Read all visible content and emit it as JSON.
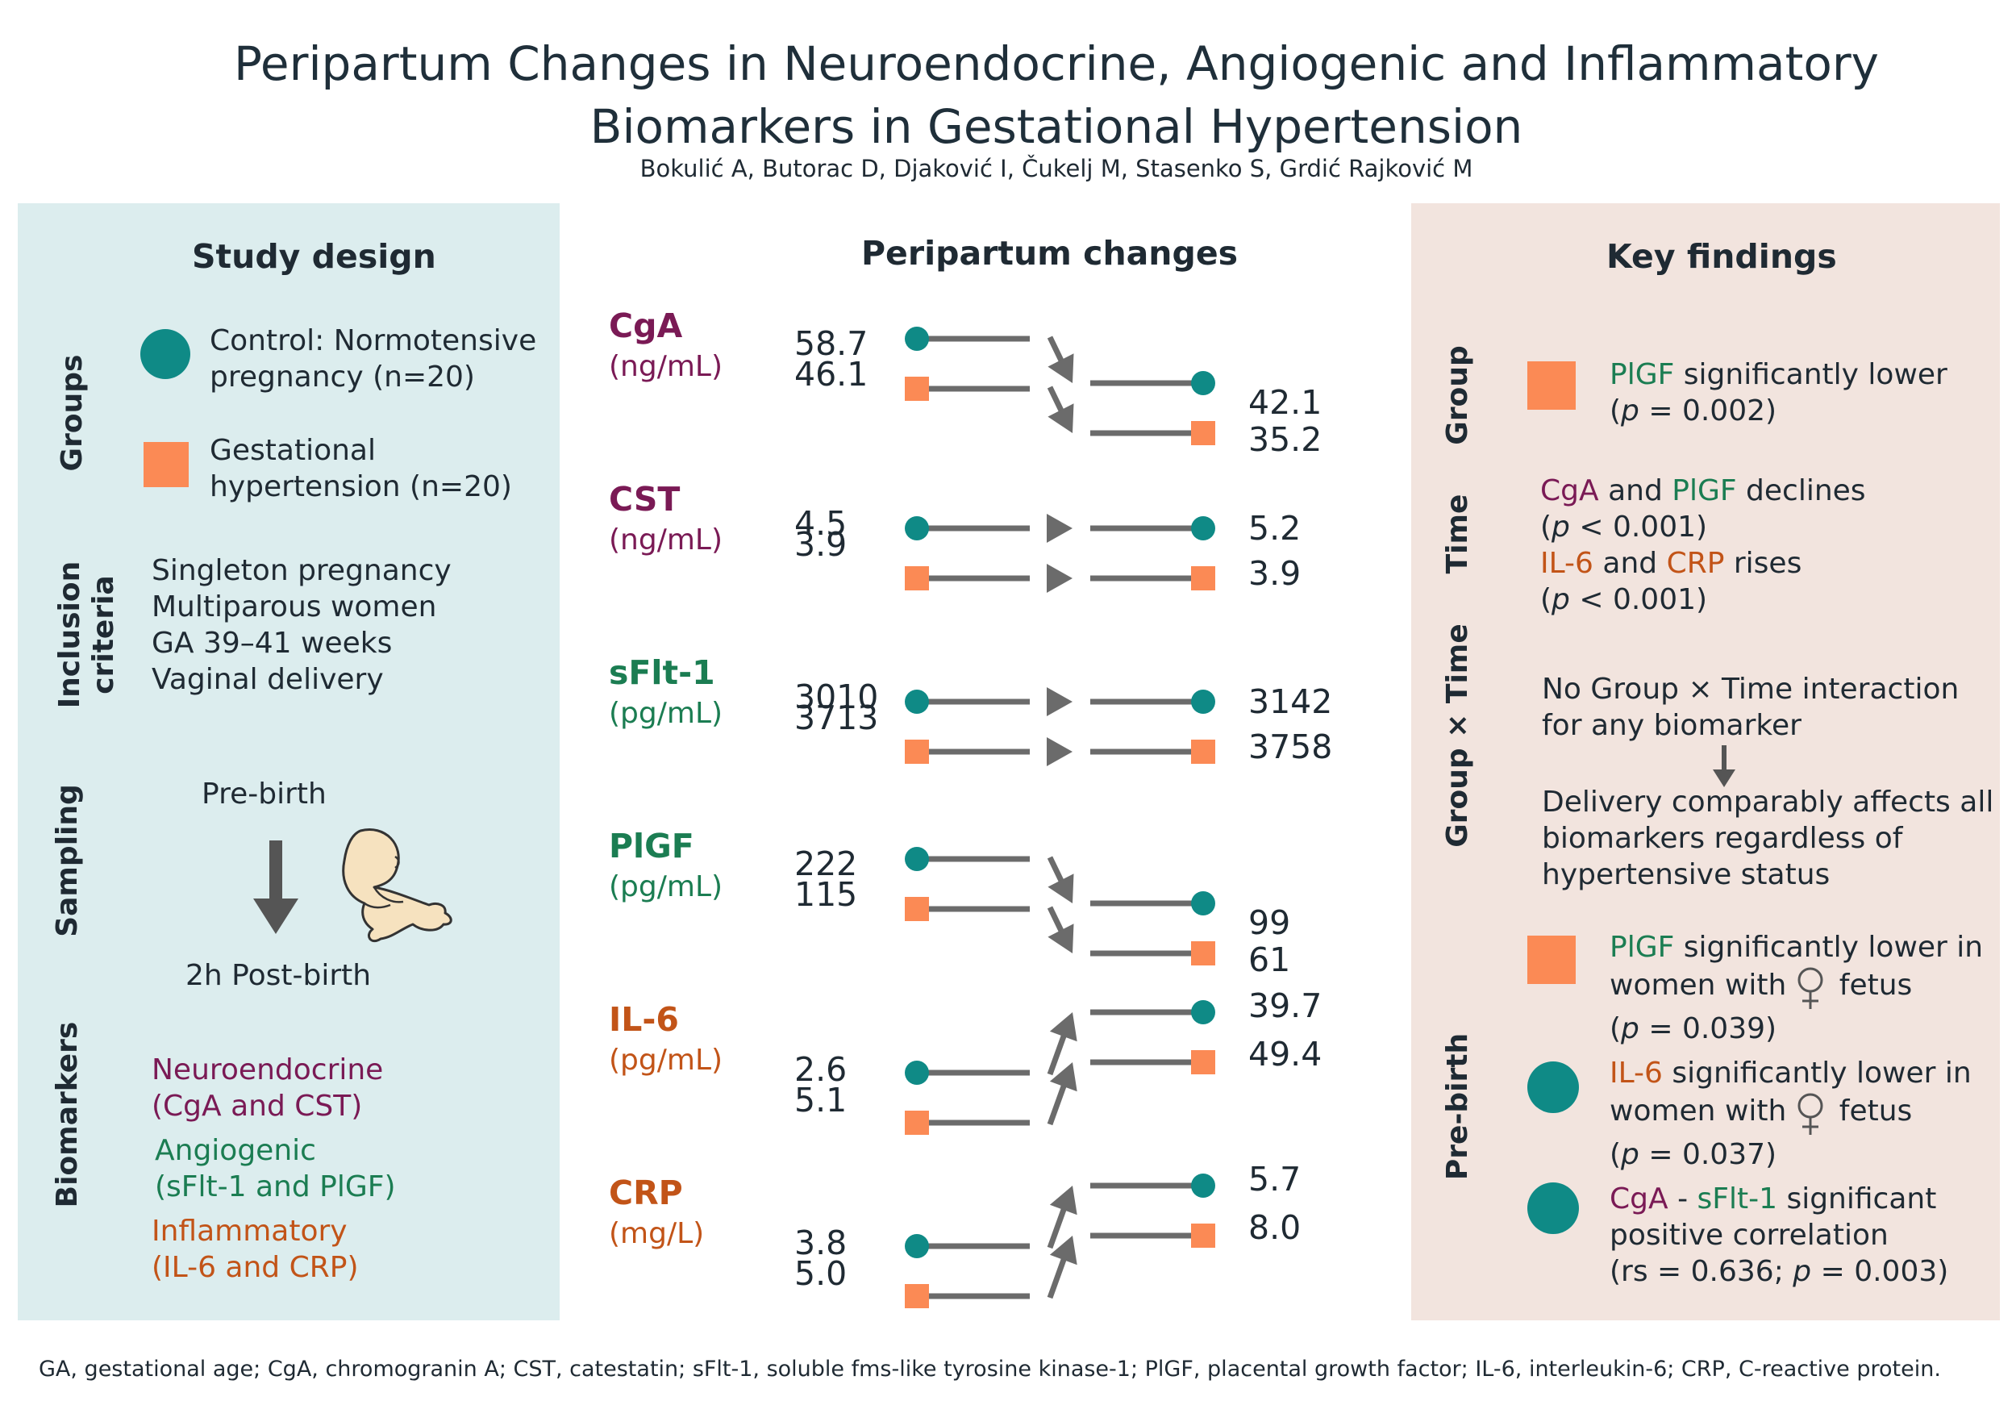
{
  "header": {
    "title_line1": "Peripartum Changes in Neuroendocrine, Angiogenic and Inflammatory",
    "title_line2": "Biomarkers in Gestational Hypertension",
    "authors": "Bokulić A, Butorac D, Djaković I, Čukelj M, Stasenko S, Grdić Rajković M"
  },
  "colors": {
    "control": "#0f8a86",
    "hypertension": "#fb8a55",
    "neuroendocrine": "#7a1a55",
    "angiogenic": "#1b7d52",
    "inflammatory": "#c25418",
    "left_panel_bg": "#dcedee",
    "right_panel_bg": "#f2e4de"
  },
  "study_design": {
    "title": "Study design",
    "groups_label": "Groups",
    "control_line1": "Control: Normotensive",
    "control_line2": "pregnancy (n=20)",
    "gh_line1": "Gestational",
    "gh_line2": "hypertension (n=20)",
    "inclusion_label1": "Inclusion",
    "inclusion_label2": "criteria",
    "inclusion_items": [
      "Singleton pregnancy",
      "Multiparous women",
      "GA 39–41 weeks",
      "Vaginal delivery"
    ],
    "sampling_label": "Sampling",
    "pre_birth": "Pre-birth",
    "post_birth": "2h Post-birth",
    "sampling_icon": "fetus-icon",
    "biomarkers_label": "Biomarkers",
    "neuro_line1": "Neuroendocrine",
    "neuro_line2": "(CgA and CST)",
    "angio_line1": "Angiogenic",
    "angio_line2": "(sFlt-1 and PlGF)",
    "inflam_line1": "Inflammatory",
    "inflam_line2": "(IL-6 and CRP)"
  },
  "peripartum": {
    "title": "Peripartum changes",
    "biomarkers": [
      {
        "name": "CgA",
        "unit": "(ng/mL)",
        "category": "neuroendocrine",
        "control_pre": "58.7",
        "gh_pre": "46.1",
        "control_post": "42.1",
        "gh_post": "35.2",
        "direction": "down"
      },
      {
        "name": "CST",
        "unit": "(ng/mL)",
        "category": "neuroendocrine",
        "control_pre": "4.5",
        "gh_pre": "3.9",
        "control_post": "5.2",
        "gh_post": "3.9",
        "direction": "flat"
      },
      {
        "name": "sFlt-1",
        "unit": "(pg/mL)",
        "category": "angiogenic",
        "control_pre": "3010",
        "gh_pre": "3713",
        "control_post": "3142",
        "gh_post": "3758",
        "direction": "flat"
      },
      {
        "name": "PlGF",
        "unit": "(pg/mL)",
        "category": "angiogenic",
        "control_pre": "222",
        "gh_pre": "115",
        "control_post": "99",
        "gh_post": "61",
        "direction": "down"
      },
      {
        "name": "IL-6",
        "unit": "(pg/mL)",
        "category": "inflammatory",
        "control_pre": "2.6",
        "gh_pre": "5.1",
        "control_post": "39.7",
        "gh_post": "49.4",
        "direction": "up"
      },
      {
        "name": "CRP",
        "unit": "(mg/L)",
        "category": "inflammatory",
        "control_pre": "3.8",
        "gh_pre": "5.0",
        "control_post": "5.7",
        "gh_post": "8.0",
        "direction": "up"
      }
    ]
  },
  "key_findings": {
    "title": "Key findings",
    "group_label": "Group",
    "group_f1_a": "PlGF",
    "group_f1_b": " significantly lower",
    "group_f1_p": "p",
    "group_f1_pval": " = 0.002)",
    "time_label": "Time",
    "time_cga": "CgA",
    "time_and1": " and ",
    "time_plgf": "PlGF",
    "time_declines": " declines",
    "time_p1": " < 0.001)",
    "time_il6": "IL-6",
    "time_and2": " and ",
    "time_crp": "CRP",
    "time_rises": " rises",
    "time_p2": " < 0.001)",
    "p_symbol": "p",
    "gxt_label": "Group × Time",
    "gxt_line1": "No Group × Time interaction",
    "gxt_line2": "for any biomarker",
    "gxt_line3": "Delivery comparably affects all",
    "gxt_line4": "biomarkers regardless of",
    "gxt_line5": "hypertensive status",
    "prebirth_label": "Pre-birth",
    "pb1_marker": "PlGF",
    "pb1_rest": " significantly lower in",
    "pb1_line2": "women with",
    "pb1_line2b": " fetus",
    "pb1_p": " = 0.039)",
    "pb2_marker": "IL-6",
    "pb2_rest": " significantly lower in",
    "pb2_line2": "women with",
    "pb2_line2b": " fetus",
    "pb2_p": " = 0.037)",
    "pb3_cga": "CgA",
    "pb3_dash": " - ",
    "pb3_sflt": "sFlt-1",
    "pb3_rest": " significant",
    "pb3_line2": "positive correlation",
    "pb3_line3a": "(rs = 0.636; ",
    "pb3_line3b": " = 0.003)",
    "female_icon": "female-symbol-icon"
  },
  "footnote": "GA, gestational age; CgA, chromogranin A; CST, catestatin; sFlt-1, soluble fms-like tyrosine kinase-1; PlGF, placental growth factor; IL-6, interleukin-6; CRP, C-reactive protein."
}
